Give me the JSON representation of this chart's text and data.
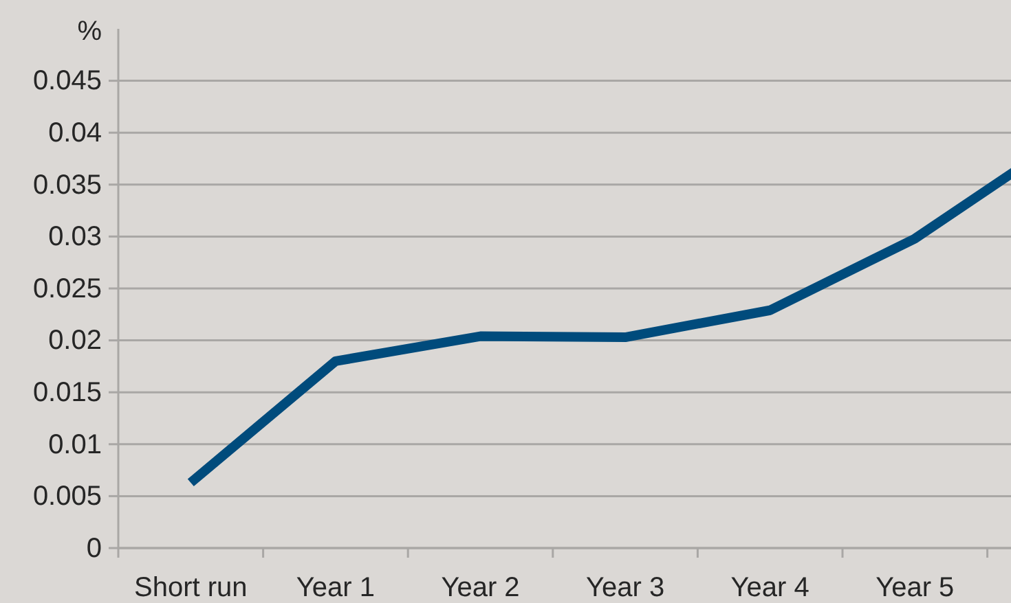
{
  "chart_data": {
    "type": "line",
    "ylabel": "%",
    "categories": [
      "Short run",
      "Year 1",
      "Year 2",
      "Year 3",
      "Year 4",
      "Year 5",
      null
    ],
    "series": [
      {
        "color": "#004b7c",
        "values": [
          0.0063,
          0.018,
          0.0204,
          0.0203,
          0.0229,
          0.0298,
          0.0392
        ]
      }
    ],
    "ylim": [
      0,
      0.05
    ],
    "yticks": [
      0,
      0.005,
      0.01,
      0.015,
      0.02,
      0.025,
      0.03,
      0.035,
      0.04,
      0.045
    ],
    "grid": "y"
  }
}
